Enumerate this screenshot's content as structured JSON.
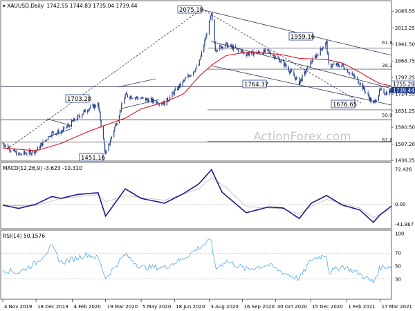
{
  "header": {
    "symbol": "XAUUSD",
    "timeframe": "Daily",
    "ohlc": "1742.55 1744.83 1735.04 1739.44"
  },
  "watermark": "ActionForex.com",
  "colors": {
    "candle": "#1f3d8a",
    "ma": "#e0141e",
    "macd": "#1a1a8c",
    "macd_signal": "#bfbfbf",
    "rsi": "#4fa9e8",
    "trendline": "#333355",
    "label_bg": "#ffffff",
    "label_border": "#1f3d8a",
    "current_bg": "#1f3d8a"
  },
  "chart_data": [
    {
      "type": "candlestick",
      "panel": "price",
      "ylim": [
        1436.25,
        2110.0
      ],
      "y_ticks": [
        "2085.55",
        "2012.25",
        "1941.50",
        "1868.75",
        "1797.25",
        "1724.55",
        "1651.25",
        "1580.50",
        "1507.20",
        "1436.25"
      ],
      "x_ticks": [
        "4 Nov 2019",
        "18 Dec 2019",
        "4 Feb 2020",
        "19 Mar 2020",
        "5 May 2020",
        "18 Jun 2020",
        "3 Aug 2020",
        "16 Sep 2020",
        "30 Oct 2020",
        "15 Dec 2020",
        "1 Feb 2021",
        "17 Mar 2021"
      ],
      "price_labels": [
        "2075.18",
        "1959.16",
        "1764.37",
        "1703.28",
        "1676.65",
        "1451.16"
      ],
      "current_price": "1739.44",
      "current_price_upper": "1755.29",
      "fibonacci_levels": [
        "61.8",
        "38.2",
        "50.0",
        "61.8"
      ],
      "close_anchors": [
        {
          "x": "2019-11-04",
          "y": 1510
        },
        {
          "x": "2019-11-25",
          "y": 1460
        },
        {
          "x": "2019-12-18",
          "y": 1478
        },
        {
          "x": "2020-01-08",
          "y": 1556
        },
        {
          "x": "2020-01-20",
          "y": 1560
        },
        {
          "x": "2020-02-24",
          "y": 1660
        },
        {
          "x": "2020-03-09",
          "y": 1680
        },
        {
          "x": "2020-03-19",
          "y": 1460
        },
        {
          "x": "2020-04-14",
          "y": 1720
        },
        {
          "x": "2020-05-05",
          "y": 1705
        },
        {
          "x": "2020-06-05",
          "y": 1685
        },
        {
          "x": "2020-06-30",
          "y": 1780
        },
        {
          "x": "2020-07-20",
          "y": 1850
        },
        {
          "x": "2020-08-06",
          "y": 2070
        },
        {
          "x": "2020-08-11",
          "y": 1920
        },
        {
          "x": "2020-08-25",
          "y": 1940
        },
        {
          "x": "2020-09-21",
          "y": 1900
        },
        {
          "x": "2020-10-20",
          "y": 1910
        },
        {
          "x": "2020-11-09",
          "y": 1860
        },
        {
          "x": "2020-11-30",
          "y": 1775
        },
        {
          "x": "2020-12-16",
          "y": 1865
        },
        {
          "x": "2021-01-05",
          "y": 1950
        },
        {
          "x": "2021-01-08",
          "y": 1850
        },
        {
          "x": "2021-01-26",
          "y": 1850
        },
        {
          "x": "2021-02-18",
          "y": 1775
        },
        {
          "x": "2021-03-08",
          "y": 1680
        },
        {
          "x": "2021-03-17",
          "y": 1740
        },
        {
          "x": "2021-03-25",
          "y": 1730
        },
        {
          "x": "2021-04-01",
          "y": 1740
        }
      ],
      "ma_anchors": [
        {
          "x": "2019-11-04",
          "y": 1490
        },
        {
          "x": "2019-12-18",
          "y": 1478
        },
        {
          "x": "2020-01-20",
          "y": 1510
        },
        {
          "x": "2020-02-24",
          "y": 1560
        },
        {
          "x": "2020-03-19",
          "y": 1590
        },
        {
          "x": "2020-04-14",
          "y": 1620
        },
        {
          "x": "2020-05-05",
          "y": 1660
        },
        {
          "x": "2020-06-05",
          "y": 1690
        },
        {
          "x": "2020-06-30",
          "y": 1725
        },
        {
          "x": "2020-07-20",
          "y": 1800
        },
        {
          "x": "2020-08-06",
          "y": 1850
        },
        {
          "x": "2020-08-25",
          "y": 1892
        },
        {
          "x": "2020-09-21",
          "y": 1907
        },
        {
          "x": "2020-10-20",
          "y": 1902
        },
        {
          "x": "2020-11-09",
          "y": 1895
        },
        {
          "x": "2020-11-30",
          "y": 1880
        },
        {
          "x": "2020-12-16",
          "y": 1878
        },
        {
          "x": "2021-01-05",
          "y": 1875
        },
        {
          "x": "2021-01-26",
          "y": 1860
        },
        {
          "x": "2021-02-18",
          "y": 1820
        },
        {
          "x": "2021-03-08",
          "y": 1785
        },
        {
          "x": "2021-03-17",
          "y": 1770
        },
        {
          "x": "2021-04-01",
          "y": 1760
        }
      ],
      "fib_values": [
        1924,
        1833,
        1656,
        1518
      ],
      "hlines": [
        1757,
        1612,
        1516
      ]
    },
    {
      "type": "line",
      "panel": "macd",
      "title": "MACD(12,26,9) -3.623 -10.310",
      "y_ticks": [
        "72.426",
        "0.00",
        "-41.867"
      ],
      "ylim": [
        -50,
        80
      ],
      "series": [
        {
          "role": "macd",
          "points": [
            {
              "x": "2019-11-04",
              "y": -2
            },
            {
              "x": "2019-11-25",
              "y": -9
            },
            {
              "x": "2019-12-18",
              "y": 0
            },
            {
              "x": "2020-01-08",
              "y": 16
            },
            {
              "x": "2020-01-20",
              "y": 12
            },
            {
              "x": "2020-02-10",
              "y": 20
            },
            {
              "x": "2020-02-24",
              "y": 22
            },
            {
              "x": "2020-03-09",
              "y": 24
            },
            {
              "x": "2020-03-19",
              "y": -25
            },
            {
              "x": "2020-04-14",
              "y": 32
            },
            {
              "x": "2020-05-05",
              "y": 12
            },
            {
              "x": "2020-06-05",
              "y": 2
            },
            {
              "x": "2020-06-30",
              "y": 22
            },
            {
              "x": "2020-07-20",
              "y": 42
            },
            {
              "x": "2020-08-06",
              "y": 72
            },
            {
              "x": "2020-08-20",
              "y": 25
            },
            {
              "x": "2020-09-21",
              "y": -18
            },
            {
              "x": "2020-10-20",
              "y": -6
            },
            {
              "x": "2020-11-09",
              "y": -8
            },
            {
              "x": "2020-11-30",
              "y": -30
            },
            {
              "x": "2020-12-16",
              "y": 2
            },
            {
              "x": "2021-01-05",
              "y": 18
            },
            {
              "x": "2021-01-26",
              "y": -2
            },
            {
              "x": "2021-02-18",
              "y": -12
            },
            {
              "x": "2021-03-08",
              "y": -38
            },
            {
              "x": "2021-03-17",
              "y": -22
            },
            {
              "x": "2021-04-01",
              "y": -4
            }
          ]
        },
        {
          "role": "signal",
          "points": [
            {
              "x": "2019-11-04",
              "y": -3
            },
            {
              "x": "2019-12-18",
              "y": -3
            },
            {
              "x": "2020-01-20",
              "y": 12
            },
            {
              "x": "2020-03-09",
              "y": 20
            },
            {
              "x": "2020-03-19",
              "y": 5
            },
            {
              "x": "2020-04-14",
              "y": 18
            },
            {
              "x": "2020-06-05",
              "y": 8
            },
            {
              "x": "2020-07-20",
              "y": 32
            },
            {
              "x": "2020-08-06",
              "y": 55
            },
            {
              "x": "2020-08-25",
              "y": 35
            },
            {
              "x": "2020-09-21",
              "y": -5
            },
            {
              "x": "2020-11-09",
              "y": -10
            },
            {
              "x": "2020-11-30",
              "y": -20
            },
            {
              "x": "2020-12-16",
              "y": -5
            },
            {
              "x": "2021-01-05",
              "y": 10
            },
            {
              "x": "2021-02-18",
              "y": -8
            },
            {
              "x": "2021-03-08",
              "y": -28
            },
            {
              "x": "2021-04-01",
              "y": -10
            }
          ]
        }
      ]
    },
    {
      "type": "line",
      "panel": "rsi",
      "title": "RSI(14) 50.1576",
      "y_ticks": [
        "100",
        "70",
        "50",
        "30"
      ],
      "ylim": [
        0,
        100
      ],
      "levels": [
        70,
        30
      ],
      "series": [
        {
          "role": "rsi",
          "points": [
            {
              "x": "2019-11-04",
              "y": 45
            },
            {
              "x": "2019-11-25",
              "y": 40
            },
            {
              "x": "2019-12-18",
              "y": 55
            },
            {
              "x": "2020-01-08",
              "y": 80
            },
            {
              "x": "2020-01-20",
              "y": 55
            },
            {
              "x": "2020-02-24",
              "y": 68
            },
            {
              "x": "2020-03-09",
              "y": 62
            },
            {
              "x": "2020-03-19",
              "y": 32
            },
            {
              "x": "2020-04-14",
              "y": 68
            },
            {
              "x": "2020-05-05",
              "y": 48
            },
            {
              "x": "2020-06-05",
              "y": 48
            },
            {
              "x": "2020-06-30",
              "y": 62
            },
            {
              "x": "2020-07-20",
              "y": 78
            },
            {
              "x": "2020-08-06",
              "y": 90
            },
            {
              "x": "2020-08-11",
              "y": 45
            },
            {
              "x": "2020-08-25",
              "y": 58
            },
            {
              "x": "2020-09-21",
              "y": 45
            },
            {
              "x": "2020-10-20",
              "y": 52
            },
            {
              "x": "2020-11-09",
              "y": 40
            },
            {
              "x": "2020-11-30",
              "y": 30
            },
            {
              "x": "2020-12-16",
              "y": 60
            },
            {
              "x": "2021-01-05",
              "y": 68
            },
            {
              "x": "2021-01-08",
              "y": 40
            },
            {
              "x": "2021-01-26",
              "y": 50
            },
            {
              "x": "2021-02-18",
              "y": 38
            },
            {
              "x": "2021-03-08",
              "y": 25
            },
            {
              "x": "2021-03-17",
              "y": 48
            },
            {
              "x": "2021-04-01",
              "y": 50
            }
          ]
        }
      ]
    }
  ]
}
